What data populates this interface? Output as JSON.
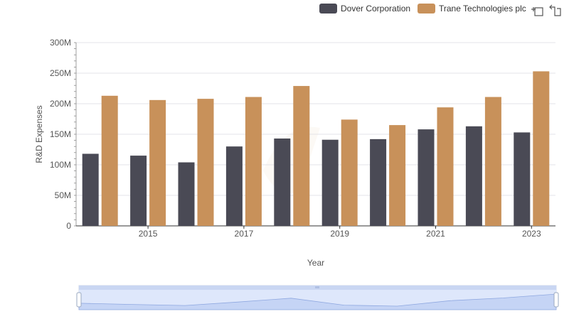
{
  "toolbar": {
    "zoom_icon": "zoom-select-icon",
    "reset_icon": "zoom-reset-icon"
  },
  "chart_data": {
    "type": "bar",
    "xlabel": "Year",
    "ylabel": "R&D Expenses",
    "ylim": [
      0,
      300000000
    ],
    "y_ticks": [
      "0",
      "50M",
      "100M",
      "150M",
      "200M",
      "250M",
      "300M"
    ],
    "x_tick_labels": [
      "2015",
      "2017",
      "2019",
      "2021",
      "2023"
    ],
    "categories": [
      "2014",
      "2015",
      "2016",
      "2017",
      "2018",
      "2019",
      "2020",
      "2021",
      "2022",
      "2023"
    ],
    "grid": true,
    "legend_position": "top-right",
    "series": [
      {
        "name": "Dover Corporation",
        "color": "#4a4a55",
        "values": [
          118000000,
          115000000,
          104000000,
          130000000,
          143000000,
          141000000,
          142000000,
          158000000,
          163000000,
          153000000
        ]
      },
      {
        "name": "Trane Technologies plc",
        "color": "#c8915a",
        "values": [
          213000000,
          206000000,
          208000000,
          211000000,
          229000000,
          174000000,
          165000000,
          194000000,
          211000000,
          253000000
        ]
      }
    ]
  }
}
